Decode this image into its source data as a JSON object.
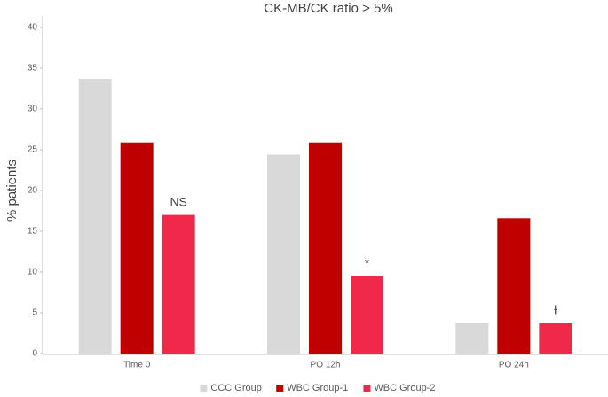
{
  "chart_data": {
    "type": "bar",
    "title": "CK-MB/CK ratio > 5%",
    "y_label": "% patients",
    "categories": [
      "Time 0",
      "PO 12h",
      "PO 24h"
    ],
    "series": [
      {
        "name": "CCC Group",
        "color": "#d9d9d9",
        "values": [
          33.7,
          24.4,
          3.7
        ]
      },
      {
        "name": "WBC Group-1",
        "color": "#c00000",
        "values": [
          25.9,
          25.9,
          16.6
        ]
      },
      {
        "name": "WBC Group-2",
        "color": "#f0284a",
        "values": [
          17.0,
          9.5,
          3.7
        ]
      }
    ],
    "annotations": [
      "NS",
      "*",
      "ƚ"
    ],
    "ylim": [
      0,
      40
    ],
    "yticks": [
      0,
      5,
      10,
      15,
      20,
      25,
      30,
      35,
      40
    ],
    "grid": false,
    "legend": "bottom"
  }
}
